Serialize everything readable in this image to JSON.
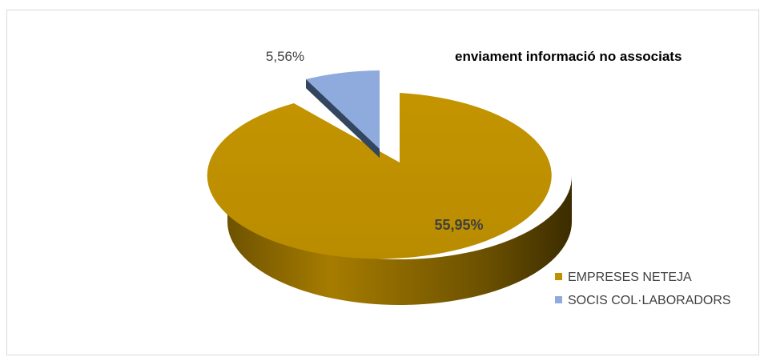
{
  "chart_data": {
    "type": "pie",
    "title": "enviament informació no associats",
    "categories": [
      "EMPRESES NETEJA",
      "SOCIS COL·LABORADORS"
    ],
    "series": [
      {
        "values": [
          55.95,
          5.56
        ],
        "labels": [
          "55,95%",
          "5,56%"
        ]
      }
    ],
    "legend_position": "bottom-right",
    "colors": [
      "#bf9000",
      "#8faadc"
    ]
  }
}
